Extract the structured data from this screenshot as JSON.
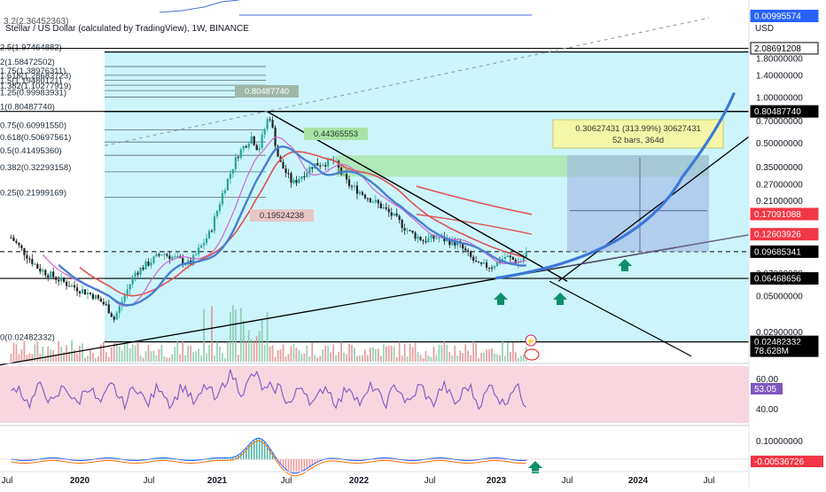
{
  "header": {
    "symbol_title": "Stellar / US Dollar (calculated by TradingView), 1W, BINANCE"
  },
  "colors": {
    "fib_fill": "#ccf5fb",
    "rsi_band": "#f9d6df",
    "candle_up": "#26a69a",
    "candle_down": "#222222",
    "ma_blue": "#4a7fd0",
    "ma_red": "#e05050",
    "ma_pink": "#cc66cc",
    "projection_curve": "#3c78d8",
    "rsi_line": "#7e57c2",
    "arrow": "#0b8f6a",
    "measure_box": "#9fb4e8",
    "measure_label": "#f4f7a8",
    "resistance_zone": "#a6e3a4"
  },
  "chart_data": [
    {
      "type": "candlestick",
      "title": "Stellar / US Dollar (calculated by TradingView), 1W, BINANCE",
      "scale": "log",
      "x_ticks": [
        "Jul",
        "2020",
        "Jul",
        "2021",
        "Jul",
        "2022",
        "Jul",
        "2023",
        "Jul",
        "2024",
        "Jul"
      ],
      "y_ticks": [
        1.8,
        1.4,
        1.0,
        0.7,
        0.5,
        0.35,
        0.27,
        0.21,
        0.07,
        0.05,
        0.029
      ],
      "price_tags": [
        {
          "value": "0.00995574",
          "color": "#2962ff",
          "kind": "filled"
        },
        {
          "value": "2.08691208",
          "color": "#000000",
          "kind": "outline"
        },
        {
          "value": "0.80487740",
          "color": "#000000",
          "kind": "filled"
        },
        {
          "value": "0.17091088",
          "color": "#f23645",
          "kind": "filled"
        },
        {
          "value": "0.12603926",
          "color": "#f23645",
          "kind": "filled"
        },
        {
          "value": "0.09685341",
          "color": "#000000",
          "kind": "filled"
        },
        {
          "value": "0.06468656",
          "color": "#000000",
          "kind": "filled"
        },
        {
          "value": "0.02482332",
          "color": "#000000",
          "kind": "filled"
        },
        {
          "value": "78.628M",
          "color": "#000000",
          "kind": "filled"
        }
      ],
      "currency_label": "USD",
      "fib_levels": [
        {
          "label": "2.5(1.97464882)",
          "value": 1.97464882
        },
        {
          "label": "2(1.58472502)",
          "value": 1.58472502
        },
        {
          "label": "1.75(1.38976311)",
          "value": 1.38976311
        },
        {
          "label": "1.618(1.28683723)",
          "value": 1.28683723
        },
        {
          "label": "1.5(1.19480121)",
          "value": 1.19480121
        },
        {
          "label": "1.382(1.10277919)",
          "value": 1.10277919
        },
        {
          "label": "1.25(0.99983931)",
          "value": 0.99983931
        },
        {
          "label": "1(0.80487740)",
          "value": 0.8048774
        },
        {
          "label": "0.75(0.60991550)",
          "value": 0.6099155
        },
        {
          "label": "0.618(0.50697561)",
          "value": 0.50697561
        },
        {
          "label": "0.5(0.41495360)",
          "value": 0.4149536
        },
        {
          "label": "0.382(0.32293158)",
          "value": 0.32293158
        },
        {
          "label": "0.25(0.21999169)",
          "value": 0.21999169
        },
        {
          "label": "0(0.02482332)",
          "value": 0.02482332
        }
      ],
      "top_fib_partial": "3.2(2.36452363)",
      "annotations": {
        "high": "0.80487740",
        "low": "0.19524238",
        "mid": "0.44365553",
        "measure_line1": "0.30627431 (313.99%) 30627431",
        "measure_line2": "52 bars, 364d"
      },
      "moving_averages": [
        "blue",
        "red",
        "pink"
      ]
    },
    {
      "type": "line",
      "name": "RSI",
      "y_ticks": [
        60.0,
        40.0
      ],
      "current_value": "53.05"
    },
    {
      "type": "histogram",
      "name": "MACD",
      "y_ticks": [
        0.1
      ],
      "current_value": "-0.00536726"
    }
  ]
}
